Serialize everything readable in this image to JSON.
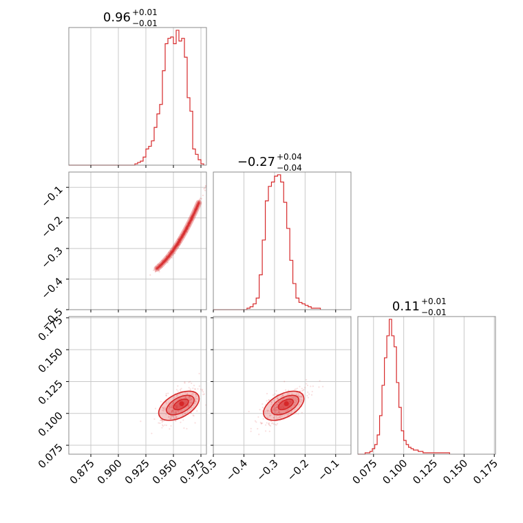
{
  "chart_data": {
    "type": "corner",
    "color": "#d62728",
    "grid": true,
    "panels": [
      {
        "id": "hist-p0",
        "type": "histogram",
        "title_main": "0.96",
        "title_plus": "+0.01",
        "title_minus": "−0.01",
        "xlim": [
          0.855,
          0.98
        ],
        "x_ticks": [
          0.875,
          0.9,
          0.925,
          0.95,
          0.975
        ],
        "x_tick_labels": [
          "0.875",
          "0.900",
          "0.925",
          "0.950",
          "0.975"
        ],
        "bin_edges_start": 0.915,
        "bin_width": 0.0025,
        "counts": [
          1,
          2,
          3,
          6,
          12,
          14,
          18,
          28,
          38,
          45,
          70,
          90,
          94,
          95,
          90,
          100,
          92,
          94,
          80,
          50,
          40,
          12,
          8,
          4,
          1
        ],
        "baseline_start": 0.855
      },
      {
        "id": "hist-p1",
        "type": "histogram",
        "title_main": "−0.27",
        "title_plus": "+0.04",
        "title_minus": "−0.04",
        "xlim": [
          -0.5,
          -0.05
        ],
        "x_ticks": [
          -0.5,
          -0.4,
          -0.3,
          -0.2,
          -0.1
        ],
        "x_tick_labels": [
          "−0.5",
          "−0.4",
          "−0.3",
          "−0.2",
          "−0.1"
        ],
        "bin_edges_start": -0.39,
        "bin_width": 0.01,
        "counts": [
          1,
          2,
          4,
          8,
          24,
          48,
          75,
          85,
          88,
          92,
          93,
          88,
          74,
          56,
          34,
          18,
          8,
          5,
          4,
          3,
          2,
          1,
          1,
          1
        ],
        "baseline_start": -0.5
      },
      {
        "id": "hist-p2",
        "type": "histogram",
        "title_main": "0.11",
        "title_plus": "+0.01",
        "title_minus": "−0.01",
        "xlim": [
          0.062,
          0.176
        ],
        "x_ticks": [
          0.075,
          0.1,
          0.125,
          0.15,
          0.175
        ],
        "x_tick_labels": [
          "0.075",
          "0.100",
          "0.125",
          "0.150",
          "0.175"
        ],
        "bin_edges_start": 0.068,
        "bin_width": 0.002,
        "counts": [
          1,
          1,
          2,
          4,
          7,
          14,
          28,
          50,
          70,
          86,
          98,
          86,
          78,
          52,
          34,
          17,
          10,
          7,
          5,
          4,
          3,
          3,
          2,
          2,
          1,
          1,
          1,
          1,
          1,
          1,
          1,
          1,
          1,
          1,
          1
        ],
        "baseline_start": 0.062
      }
    ],
    "scatter_panels": [
      {
        "id": "p1-vs-p0",
        "xlim": [
          0.855,
          0.98
        ],
        "ylim": [
          -0.5,
          -0.05
        ],
        "y_ticks": [
          -0.5,
          -0.4,
          -0.3,
          -0.2,
          -0.1
        ],
        "y_tick_labels": [
          "−0.5",
          "−0.4",
          "−0.3",
          "−0.2",
          "−0.1"
        ]
      },
      {
        "id": "p2-vs-p0",
        "xlim": [
          0.855,
          0.98
        ],
        "ylim": [
          0.068,
          0.176
        ],
        "y_ticks": [
          0.075,
          0.1,
          0.125,
          0.15,
          0.175
        ],
        "y_tick_labels": [
          "0.075",
          "0.100",
          "0.125",
          "0.150",
          "0.175"
        ]
      },
      {
        "id": "p2-vs-p1",
        "xlim": [
          -0.5,
          -0.05
        ],
        "ylim": [
          0.068,
          0.176
        ]
      }
    ]
  }
}
